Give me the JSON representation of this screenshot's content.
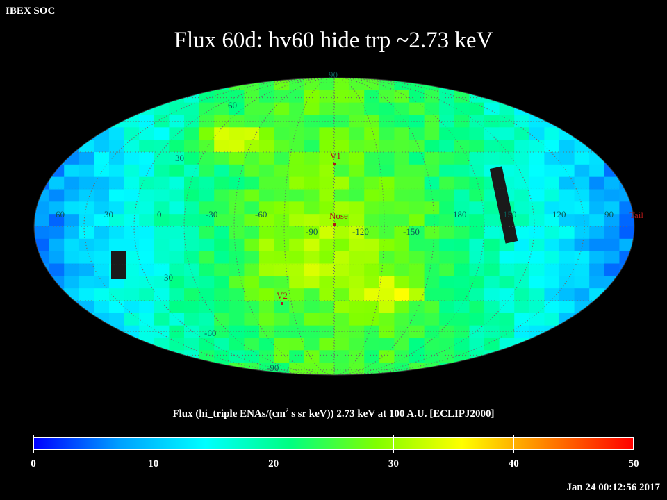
{
  "corner_label": "IBEX SOC",
  "title": "Flux   60d: hv60 hide trp ~2.73 keV",
  "map": {
    "projection": "mollweide",
    "grid_labels": {
      "latitude": [
        "90",
        "60",
        "30",
        "30",
        "-60",
        "-90"
      ],
      "longitude": [
        "60",
        "30",
        "0",
        "-30",
        "-60",
        "-90",
        "-120",
        "-150",
        "180",
        "150",
        "120",
        "90"
      ]
    },
    "markers": [
      {
        "name": "V1",
        "label": "V1"
      },
      {
        "name": "Nose",
        "label": "Nose"
      },
      {
        "name": "V2",
        "label": "V2"
      },
      {
        "name": "Tail",
        "label": "Tail"
      }
    ],
    "colors": {
      "grid": "#6a6a6a",
      "marker": "#b11818",
      "label": "#0b5a55",
      "blank_pixel": "#1a1a1a",
      "saturated_pixel": "#e6e6e6"
    }
  },
  "colorbar": {
    "title_prefix": "Flux (hi_triple ENAs/(cm",
    "title_sup": "2",
    "title_suffix": " s sr keV))  2.73 keV at 100 A.U. [ECLIPJ2000]",
    "min": 0,
    "max": 50,
    "tick_labels": [
      "0",
      "10",
      "20",
      "30",
      "40",
      "50"
    ],
    "gradient": [
      "#0000ff",
      "#00a0ff",
      "#00ffff",
      "#00ff80",
      "#80ff00",
      "#ffff00",
      "#ff8000",
      "#ff0000"
    ]
  },
  "timestamp": "Jan 24 00:12:56 2017"
}
